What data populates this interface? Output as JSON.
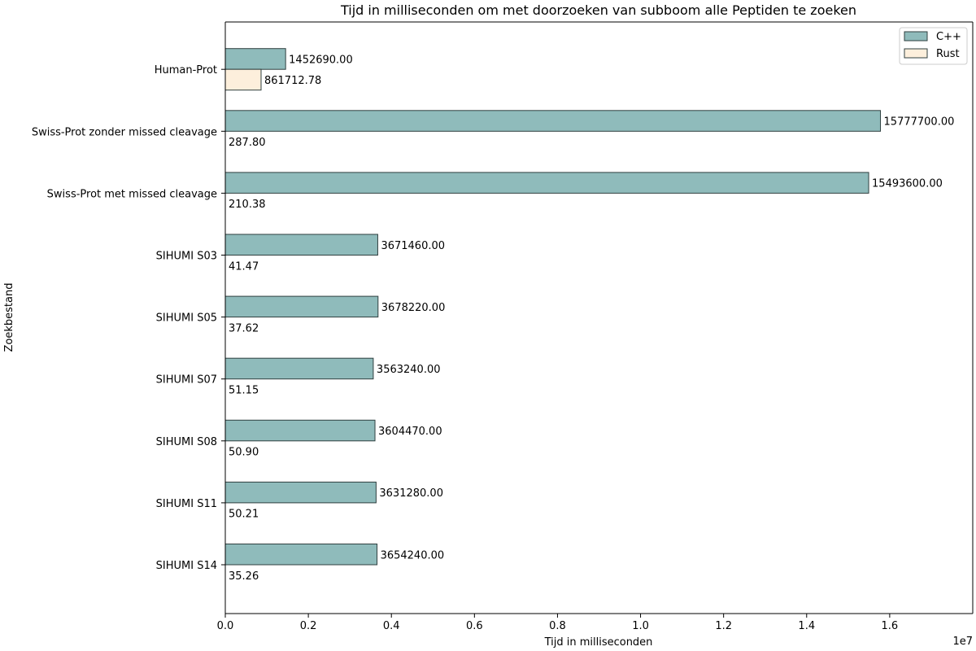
{
  "chart_data": {
    "type": "bar",
    "orientation": "horizontal",
    "title": "Tijd in milliseconden om met doorzoeken van subboom alle Peptiden te zoeken",
    "xlabel": "Tijd in milliseconden",
    "ylabel": "Zoekbestand",
    "x_offset_label": "1e7",
    "x_scale_factor": 10000000,
    "xlim": [
      0,
      18000000
    ],
    "x_ticks": [
      0,
      2000000,
      4000000,
      6000000,
      8000000,
      10000000,
      12000000,
      14000000,
      16000000
    ],
    "x_tick_labels": [
      "0.0",
      "0.2",
      "0.4",
      "0.6",
      "0.8",
      "1.0",
      "1.2",
      "1.4",
      "1.6"
    ],
    "categories": [
      "Human-Prot",
      "Swiss-Prot zonder missed cleavage",
      "Swiss-Prot met missed cleavage",
      "SIHUMI S03",
      "SIHUMI S05",
      "SIHUMI S07",
      "SIHUMI S08",
      "SIHUMI S11",
      "SIHUMI S14"
    ],
    "series": [
      {
        "name": "C++",
        "color": "#8fbbbb",
        "values": [
          1452690.0,
          15777700.0,
          15493600.0,
          3671460.0,
          3678220.0,
          3563240.0,
          3604470.0,
          3631280.0,
          3654240.0
        ],
        "labels": [
          "1452690.00",
          "15777700.00",
          "15493600.00",
          "3671460.00",
          "3678220.00",
          "3563240.00",
          "3604470.00",
          "3631280.00",
          "3654240.00"
        ]
      },
      {
        "name": "Rust",
        "color": "#fdefdc",
        "values": [
          861712.78,
          287.8,
          210.38,
          41.47,
          37.62,
          51.15,
          50.9,
          50.21,
          35.26
        ],
        "labels": [
          "861712.78",
          "287.80",
          "210.38",
          "41.47",
          "37.62",
          "51.15",
          "50.90",
          "50.21",
          "35.26"
        ]
      }
    ],
    "legend_position": "top-right",
    "grid": false
  }
}
